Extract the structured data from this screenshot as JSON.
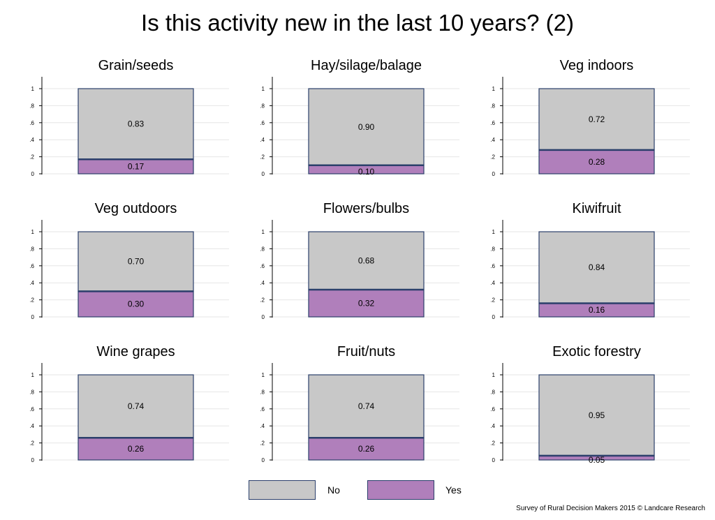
{
  "title": "Is this activity new in the last 10 years? (2)",
  "credit": "Survey of Rural Decision Makers 2015 © Landcare Research",
  "colors": {
    "no": "#c8c8c8",
    "yes": "#b07fbb",
    "outline": "#2b3f6b",
    "grid": "#e6e6e6"
  },
  "legend": {
    "no_label": "No",
    "yes_label": "Yes"
  },
  "chart_data": [
    {
      "type": "bar",
      "title": "Grain/seeds",
      "categories": [
        ""
      ],
      "series": [
        {
          "name": "No",
          "values": [
            0.83
          ]
        },
        {
          "name": "Yes",
          "values": [
            0.17
          ]
        }
      ],
      "ylim": [
        0,
        1
      ],
      "yticks": [
        "0",
        ".2",
        ".4",
        ".6",
        ".8",
        "1"
      ],
      "stacked": true,
      "grid": true
    },
    {
      "type": "bar",
      "title": "Hay/silage/balage",
      "categories": [
        ""
      ],
      "series": [
        {
          "name": "No",
          "values": [
            0.9
          ]
        },
        {
          "name": "Yes",
          "values": [
            0.1
          ]
        }
      ],
      "ylim": [
        0,
        1
      ],
      "yticks": [
        "0",
        ".2",
        ".4",
        ".6",
        ".8",
        "1"
      ],
      "stacked": true,
      "grid": true
    },
    {
      "type": "bar",
      "title": "Veg indoors",
      "categories": [
        ""
      ],
      "series": [
        {
          "name": "No",
          "values": [
            0.72
          ]
        },
        {
          "name": "Yes",
          "values": [
            0.28
          ]
        }
      ],
      "ylim": [
        0,
        1
      ],
      "yticks": [
        "0",
        ".2",
        ".4",
        ".6",
        ".8",
        "1"
      ],
      "stacked": true,
      "grid": true
    },
    {
      "type": "bar",
      "title": "Veg outdoors",
      "categories": [
        ""
      ],
      "series": [
        {
          "name": "No",
          "values": [
            0.7
          ]
        },
        {
          "name": "Yes",
          "values": [
            0.3
          ]
        }
      ],
      "ylim": [
        0,
        1
      ],
      "yticks": [
        "0",
        ".2",
        ".4",
        ".6",
        ".8",
        "1"
      ],
      "stacked": true,
      "grid": true
    },
    {
      "type": "bar",
      "title": "Flowers/bulbs",
      "categories": [
        ""
      ],
      "series": [
        {
          "name": "No",
          "values": [
            0.68
          ]
        },
        {
          "name": "Yes",
          "values": [
            0.32
          ]
        }
      ],
      "ylim": [
        0,
        1
      ],
      "yticks": [
        "0",
        ".2",
        ".4",
        ".6",
        ".8",
        "1"
      ],
      "stacked": true,
      "grid": true
    },
    {
      "type": "bar",
      "title": "Kiwifruit",
      "categories": [
        ""
      ],
      "series": [
        {
          "name": "No",
          "values": [
            0.84
          ]
        },
        {
          "name": "Yes",
          "values": [
            0.16
          ]
        }
      ],
      "ylim": [
        0,
        1
      ],
      "yticks": [
        "0",
        ".2",
        ".4",
        ".6",
        ".8",
        "1"
      ],
      "stacked": true,
      "grid": true
    },
    {
      "type": "bar",
      "title": "Wine grapes",
      "categories": [
        ""
      ],
      "series": [
        {
          "name": "No",
          "values": [
            0.74
          ]
        },
        {
          "name": "Yes",
          "values": [
            0.26
          ]
        }
      ],
      "ylim": [
        0,
        1
      ],
      "yticks": [
        "0",
        ".2",
        ".4",
        ".6",
        ".8",
        "1"
      ],
      "stacked": true,
      "grid": true
    },
    {
      "type": "bar",
      "title": "Fruit/nuts",
      "categories": [
        ""
      ],
      "series": [
        {
          "name": "No",
          "values": [
            0.74
          ]
        },
        {
          "name": "Yes",
          "values": [
            0.26
          ]
        }
      ],
      "ylim": [
        0,
        1
      ],
      "yticks": [
        "0",
        ".2",
        ".4",
        ".6",
        ".8",
        "1"
      ],
      "stacked": true,
      "grid": true
    },
    {
      "type": "bar",
      "title": "Exotic forestry",
      "categories": [
        ""
      ],
      "series": [
        {
          "name": "No",
          "values": [
            0.95
          ]
        },
        {
          "name": "Yes",
          "values": [
            0.05
          ]
        }
      ],
      "ylim": [
        0,
        1
      ],
      "yticks": [
        "0",
        ".2",
        ".4",
        ".6",
        ".8",
        "1"
      ],
      "stacked": true,
      "grid": true
    }
  ]
}
